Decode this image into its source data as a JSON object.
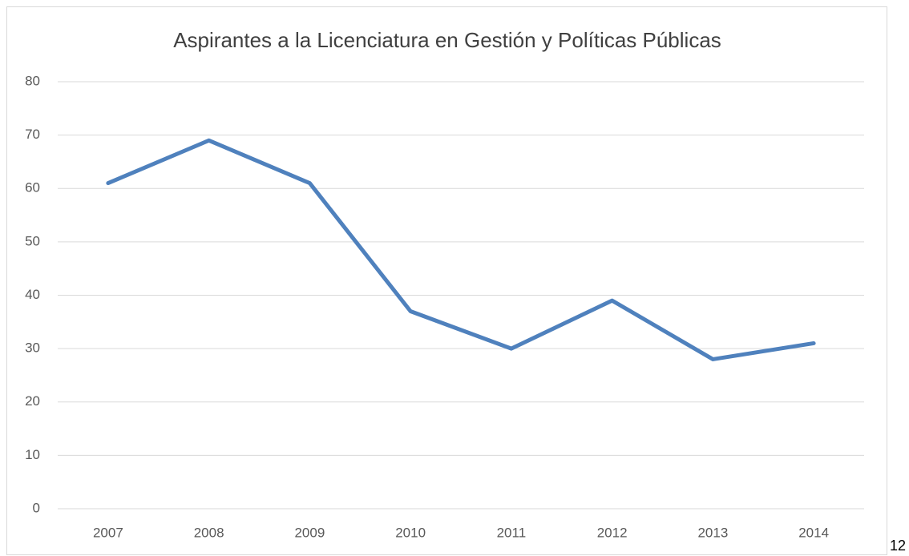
{
  "chart_data": {
    "type": "line",
    "title": "Aspirantes a la Licenciatura en Gestión y Políticas Públicas",
    "categories": [
      "2007",
      "2008",
      "2009",
      "2010",
      "2011",
      "2012",
      "2013",
      "2014"
    ],
    "values": [
      61,
      69,
      61,
      37,
      30,
      39,
      28,
      31
    ],
    "color": "#4f81bd",
    "ylim": [
      0,
      80
    ],
    "yticks": [
      0,
      10,
      20,
      30,
      40,
      50,
      60,
      70,
      80
    ],
    "grid": true
  },
  "page_number": "12"
}
